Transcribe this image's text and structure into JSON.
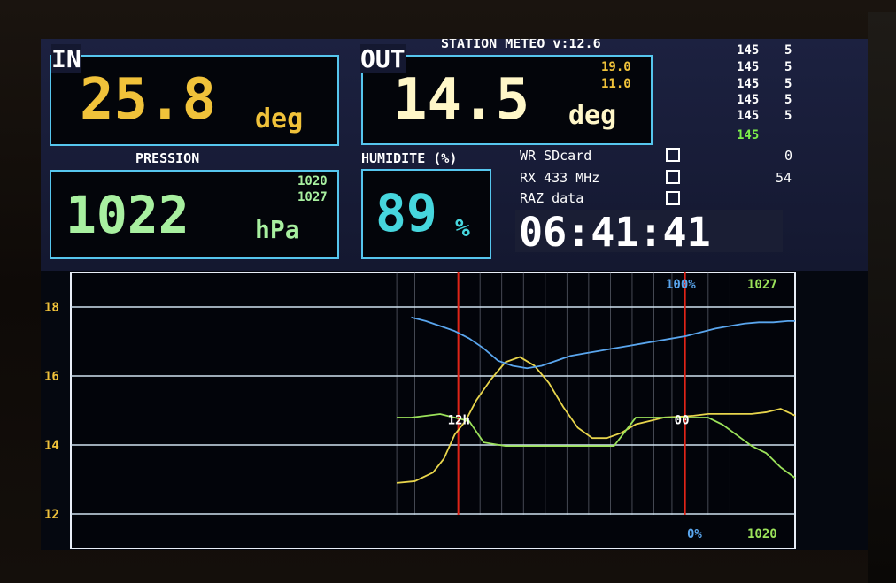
{
  "header": {
    "title": "STATION METEO v:12.6"
  },
  "indoor": {
    "label": "IN",
    "temperature": "25.8",
    "unit": "deg"
  },
  "outdoor": {
    "label": "OUT",
    "temperature": "14.5",
    "unit": "deg",
    "max": "19.0",
    "min": "11.0"
  },
  "pressure": {
    "label": "PRESSION",
    "value": "1022",
    "unit": "hPa",
    "min": "1020",
    "max": "1027"
  },
  "humidity": {
    "label": "HUMIDITE (%)",
    "value": "89",
    "unit": "%"
  },
  "counters": {
    "rows": [
      {
        "a": "145",
        "b": "5"
      },
      {
        "a": "145",
        "b": "5"
      },
      {
        "a": "145",
        "b": "5"
      },
      {
        "a": "145",
        "b": "5"
      },
      {
        "a": "145",
        "b": "5"
      }
    ],
    "total": "145"
  },
  "status": {
    "sdcard_label": "WR SDcard",
    "sdcard_value": "0",
    "rx_label": "RX 433 MHz",
    "rx_value": "54",
    "raz_label": "RAZ data"
  },
  "clock": {
    "time": "06:41:41"
  },
  "colors": {
    "accent_border": "#56c6ee",
    "indoor_text": "#f0c23a",
    "outdoor_text": "#fff7c8",
    "pressure_text": "#a8f0a0",
    "humidity_text": "#46d6dd",
    "temp_line": "#e8d54c",
    "pressure_line": "#9be25a",
    "humidity_line": "#5aa6ee",
    "marker_line": "#e02418"
  },
  "chart_data": {
    "type": "line",
    "ylim": [
      11,
      19
    ],
    "y_ticks": [
      "18",
      "16",
      "14",
      "12"
    ],
    "y_tick_values": [
      18,
      16,
      14,
      12
    ],
    "x_range": [
      0,
      100
    ],
    "markers": [
      {
        "x": 53.5,
        "label": "12h"
      },
      {
        "x": 84.8,
        "label": "00"
      }
    ],
    "top_labels": {
      "humidity_max": "100%",
      "pressure_max": "1027"
    },
    "bottom_labels": {
      "humidity_min": "0%",
      "pressure_min": "1020"
    },
    "series": [
      {
        "color_key": "temp_line",
        "x": [
          45,
          47.5,
          50,
          51.5,
          53,
          54.5,
          56,
          58,
          60,
          62,
          64,
          66,
          68,
          70,
          72,
          74,
          76,
          78,
          80,
          82,
          84,
          86,
          88,
          90,
          92,
          94,
          96,
          98,
          100
        ],
        "y": [
          12.9,
          12.95,
          13.2,
          13.6,
          14.3,
          14.7,
          15.3,
          15.9,
          16.4,
          16.55,
          16.3,
          15.8,
          15.1,
          14.5,
          14.2,
          14.2,
          14.35,
          14.6,
          14.7,
          14.8,
          14.82,
          14.85,
          14.9,
          14.9,
          14.9,
          14.9,
          14.95,
          15.05,
          14.85
        ]
      },
      {
        "color_key": "pressure_line",
        "x": [
          45,
          47,
          49,
          51,
          53,
          55,
          57,
          60,
          63,
          66,
          69,
          72,
          75,
          78,
          80,
          82,
          84,
          86,
          88,
          90,
          92,
          94,
          96,
          98,
          100
        ],
        "y": [
          1023.3,
          1023.3,
          1023.35,
          1023.4,
          1023.3,
          1023.2,
          1022.6,
          1022.5,
          1022.5,
          1022.5,
          1022.5,
          1022.5,
          1022.5,
          1023.3,
          1023.3,
          1023.3,
          1023.3,
          1023.3,
          1023.3,
          1023.1,
          1022.8,
          1022.5,
          1022.3,
          1021.9,
          1021.6
        ]
      },
      {
        "color_key": "humidity_line",
        "x": [
          47,
          49,
          51,
          53,
          55,
          57,
          59,
          61,
          63,
          65,
          67,
          69,
          71,
          73,
          75,
          77,
          79,
          81,
          83,
          85,
          87,
          89,
          91,
          93,
          95,
          97,
          99,
          100
        ],
        "y": [
          87.5,
          86,
          84,
          82,
          79,
          75,
          70,
          68,
          67,
          68,
          70,
          72,
          73,
          74,
          75,
          76,
          77,
          78,
          79,
          80,
          81.5,
          83,
          84,
          85,
          85.5,
          85.5,
          86,
          86
        ]
      }
    ]
  }
}
